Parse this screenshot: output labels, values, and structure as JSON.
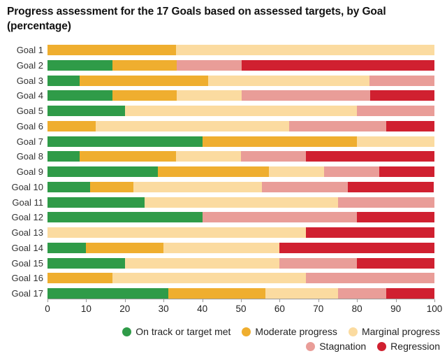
{
  "title_line1": "Progress assessment for the 17 Goals based on assessed targets, by Goal",
  "title_line2": "(percentage)",
  "chart_data": {
    "type": "bar",
    "stacked": true,
    "orientation": "horizontal",
    "title": "Progress assessment for the 17 Goals based on assessed targets, by Goal (percentage)",
    "xlabel": "",
    "ylabel": "",
    "xlim": [
      0,
      100
    ],
    "xticks": [
      0,
      10,
      20,
      30,
      40,
      50,
      60,
      70,
      80,
      90,
      100
    ],
    "grid": false,
    "legend_position": "bottom-right",
    "categories": [
      "Goal 1",
      "Goal 2",
      "Goal 3",
      "Goal 4",
      "Goal 5",
      "Goal 6",
      "Goal 7",
      "Goal 8",
      "Goal 9",
      "Goal 10",
      "Goal 11",
      "Goal 12",
      "Goal 13",
      "Goal 14",
      "Goal 15",
      "Goal 16",
      "Goal 17"
    ],
    "series": [
      {
        "name": "On track or target met",
        "color": "#2f9b48",
        "values": [
          0,
          16.7,
          8.3,
          16.7,
          20,
          0,
          40,
          8.3,
          28.6,
          11.1,
          25,
          40,
          0,
          10,
          20,
          0,
          31.25
        ]
      },
      {
        "name": "Moderate progress",
        "color": "#efae2f",
        "values": [
          33.3,
          16.7,
          33.3,
          16.7,
          0,
          12.5,
          40,
          25,
          28.6,
          11.1,
          0,
          0,
          0,
          20,
          0,
          16.7,
          25
        ]
      },
      {
        "name": "Marginal progress",
        "color": "#fbdba0",
        "values": [
          66.7,
          0,
          41.7,
          16.7,
          60,
          50,
          20,
          16.7,
          14.3,
          33.3,
          50,
          0,
          66.7,
          30,
          40,
          50,
          18.75
        ]
      },
      {
        "name": "Stagnation",
        "color": "#e99d98",
        "values": [
          0,
          16.7,
          16.7,
          33.3,
          20,
          25,
          0,
          16.7,
          14.3,
          22.2,
          25,
          40,
          0,
          0,
          20,
          33.3,
          12.5
        ]
      },
      {
        "name": "Regression",
        "color": "#d02030",
        "values": [
          0,
          50,
          0,
          16.7,
          0,
          12.5,
          0,
          33.3,
          14.3,
          22.2,
          0,
          20,
          33.3,
          40,
          20,
          0,
          12.5
        ]
      }
    ],
    "legend_rows": [
      [
        0,
        1,
        2
      ],
      [
        3,
        4
      ]
    ]
  }
}
